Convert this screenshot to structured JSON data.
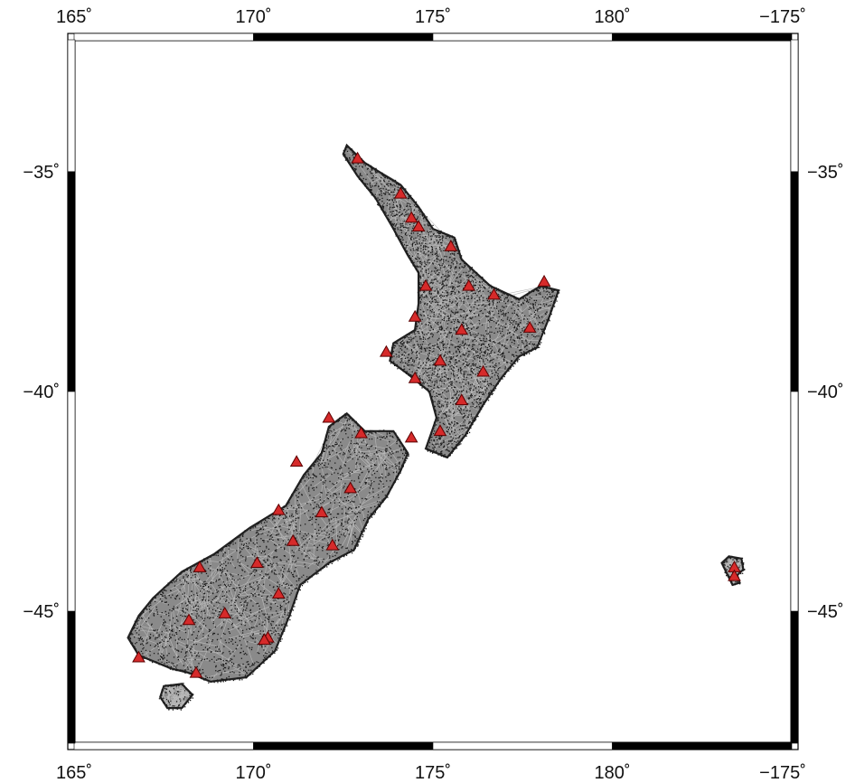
{
  "map": {
    "extent": {
      "lon_min": 165,
      "lon_max": 185,
      "lat_min": -48,
      "lat_max": -32
    },
    "frame_color": "#000000",
    "land_mesh_color": "#8a8a8a",
    "node_color": "#1a1a1a",
    "marker_color": "#d62a2a",
    "lon_ticks": [
      {
        "value": 165,
        "label": "165˚"
      },
      {
        "value": 170,
        "label": "170˚"
      },
      {
        "value": 175,
        "label": "175˚"
      },
      {
        "value": 180,
        "label": "180˚"
      },
      {
        "value": 185,
        "label": "−175˚"
      }
    ],
    "lat_ticks": [
      {
        "value": -35,
        "label": "−35˚"
      },
      {
        "value": -40,
        "label": "−40˚"
      },
      {
        "value": -45,
        "label": "−45˚"
      }
    ],
    "north_island_outline": [
      [
        172.6,
        -34.4
      ],
      [
        173.1,
        -34.8
      ],
      [
        173.5,
        -35.0
      ],
      [
        174.1,
        -35.3
      ],
      [
        174.6,
        -35.8
      ],
      [
        175.0,
        -36.3
      ],
      [
        175.6,
        -36.5
      ],
      [
        175.8,
        -37.0
      ],
      [
        176.6,
        -37.6
      ],
      [
        177.4,
        -37.9
      ],
      [
        178.0,
        -37.6
      ],
      [
        178.5,
        -37.7
      ],
      [
        178.2,
        -38.4
      ],
      [
        177.9,
        -39.0
      ],
      [
        177.4,
        -39.2
      ],
      [
        176.9,
        -39.7
      ],
      [
        176.4,
        -40.3
      ],
      [
        175.9,
        -41.0
      ],
      [
        175.4,
        -41.5
      ],
      [
        174.8,
        -41.3
      ],
      [
        175.1,
        -40.6
      ],
      [
        174.9,
        -40.0
      ],
      [
        174.3,
        -39.6
      ],
      [
        173.8,
        -39.3
      ],
      [
        173.9,
        -38.9
      ],
      [
        174.5,
        -38.6
      ],
      [
        174.6,
        -38.0
      ],
      [
        174.6,
        -37.3
      ],
      [
        174.3,
        -36.9
      ],
      [
        173.9,
        -36.3
      ],
      [
        173.4,
        -35.6
      ],
      [
        172.9,
        -35.1
      ],
      [
        172.5,
        -34.6
      ]
    ],
    "south_island_outline": [
      [
        172.6,
        -40.5
      ],
      [
        173.1,
        -40.9
      ],
      [
        173.9,
        -40.9
      ],
      [
        174.3,
        -41.4
      ],
      [
        174.1,
        -41.8
      ],
      [
        173.7,
        -42.4
      ],
      [
        173.2,
        -42.9
      ],
      [
        172.8,
        -43.6
      ],
      [
        172.1,
        -43.9
      ],
      [
        171.3,
        -44.4
      ],
      [
        171.0,
        -45.1
      ],
      [
        170.6,
        -45.9
      ],
      [
        169.8,
        -46.5
      ],
      [
        168.8,
        -46.6
      ],
      [
        168.2,
        -46.4
      ],
      [
        167.7,
        -46.3
      ],
      [
        166.8,
        -46.0
      ],
      [
        166.5,
        -45.6
      ],
      [
        166.8,
        -45.1
      ],
      [
        167.2,
        -44.7
      ],
      [
        168.0,
        -44.1
      ],
      [
        168.9,
        -43.7
      ],
      [
        169.9,
        -43.1
      ],
      [
        170.9,
        -42.6
      ],
      [
        171.4,
        -41.9
      ],
      [
        171.9,
        -41.4
      ],
      [
        172.1,
        -40.8
      ]
    ],
    "stewart_island_outline": [
      [
        167.5,
        -46.7
      ],
      [
        168.0,
        -46.65
      ],
      [
        168.3,
        -46.9
      ],
      [
        168.0,
        -47.2
      ],
      [
        167.6,
        -47.2
      ],
      [
        167.4,
        -46.95
      ]
    ],
    "chatham_islands_outline": [
      [
        183.25,
        -43.75
      ],
      [
        183.6,
        -43.8
      ],
      [
        183.65,
        -44.05
      ],
      [
        183.45,
        -44.2
      ],
      [
        183.55,
        -44.35
      ],
      [
        183.35,
        -44.4
      ],
      [
        183.2,
        -44.15
      ],
      [
        183.05,
        -43.9
      ]
    ],
    "markers": [
      [
        172.9,
        -34.7
      ],
      [
        174.1,
        -35.5
      ],
      [
        174.4,
        -36.05
      ],
      [
        174.6,
        -36.25
      ],
      [
        175.5,
        -36.7
      ],
      [
        174.8,
        -37.6
      ],
      [
        176.0,
        -37.6
      ],
      [
        176.7,
        -37.8
      ],
      [
        178.1,
        -37.5
      ],
      [
        174.5,
        -38.3
      ],
      [
        175.8,
        -38.6
      ],
      [
        177.7,
        -38.55
      ],
      [
        173.7,
        -39.1
      ],
      [
        175.2,
        -39.3
      ],
      [
        174.5,
        -39.7
      ],
      [
        176.4,
        -39.55
      ],
      [
        175.8,
        -40.2
      ],
      [
        174.4,
        -41.05
      ],
      [
        175.2,
        -40.9
      ],
      [
        172.1,
        -40.6
      ],
      [
        173.0,
        -40.95
      ],
      [
        171.2,
        -41.6
      ],
      [
        172.7,
        -42.2
      ],
      [
        170.7,
        -42.7
      ],
      [
        171.9,
        -42.75
      ],
      [
        171.1,
        -43.4
      ],
      [
        172.2,
        -43.5
      ],
      [
        168.5,
        -44.0
      ],
      [
        170.1,
        -43.9
      ],
      [
        170.7,
        -44.6
      ],
      [
        169.2,
        -45.05
      ],
      [
        168.2,
        -45.2
      ],
      [
        170.4,
        -45.6
      ],
      [
        170.3,
        -45.65
      ],
      [
        166.8,
        -46.05
      ],
      [
        168.4,
        -46.4
      ],
      [
        183.4,
        -44.0
      ],
      [
        183.4,
        -44.2
      ]
    ]
  }
}
